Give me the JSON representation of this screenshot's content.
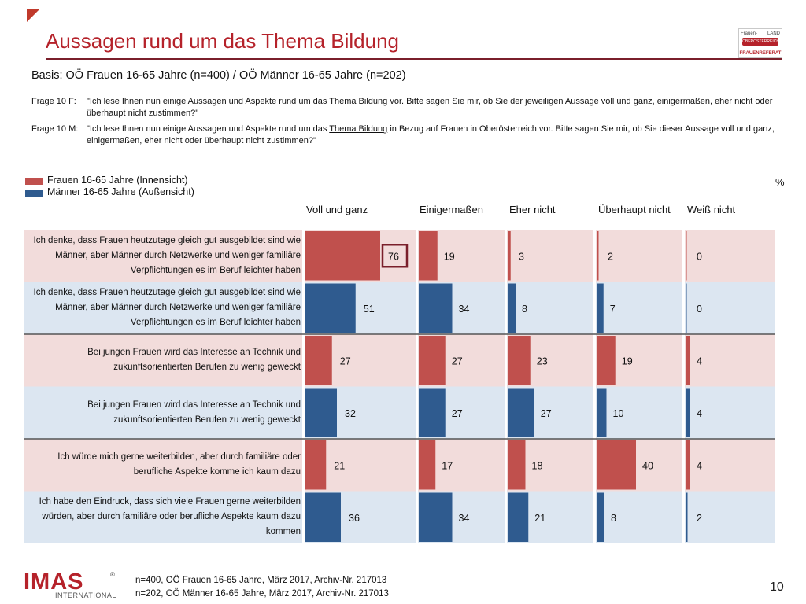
{
  "header": {
    "title": "Aussagen rund um das Thema Bildung",
    "basis": "Basis:  OÖ Frauen 16-65 Jahre (n=400) / OÖ Männer 16-65 Jahre (n=202)"
  },
  "logo": {
    "top_left": "Frauen-",
    "top_right": "LAND",
    "middle": "OBERÖSTERREICH",
    "bottom": "FRAUENREFERAT"
  },
  "questions": [
    {
      "label": "Frage 10 F:",
      "before": "\"Ich lese Ihnen nun einige Aussagen und Aspekte rund um das ",
      "underlined": "Thema Bildung",
      "after": " vor. Bitte sagen Sie mir, ob Sie der jeweiligen Aussage voll und ganz, einigermaßen, eher nicht oder überhaupt nicht zustimmen?\""
    },
    {
      "label": "Frage 10 M:",
      "before": "\"Ich lese Ihnen nun einige Aussagen und Aspekte rund um das ",
      "underlined": "Thema Bildung",
      "after": " in Bezug auf Frauen in Oberösterreich vor. Bitte sagen Sie mir, ob Sie dieser Aussage voll und ganz, einigermaßen, eher nicht oder überhaupt nicht zustimmen?\""
    }
  ],
  "unit": "%",
  "colors": {
    "frauen": "#c0504d",
    "maenner": "#2f5b8f",
    "frauen_bg": "#f2dcdb",
    "maenner_bg": "#dce6f1",
    "title": "#b5222a",
    "highlight_box": "#7a1f2b"
  },
  "chart_data": {
    "type": "bar",
    "orientation": "horizontal",
    "categories": [
      "Voll und ganz",
      "Einigermaßen",
      "Eher nicht",
      "Überhaupt nicht",
      "Weiß nicht"
    ],
    "legend": [
      "Frauen  16-65  Jahre  (Innensicht)",
      "Männer  16-65  Jahre  (Außensicht)"
    ],
    "xlim": [
      0,
      100
    ],
    "rows": [
      {
        "label": "Ich denke, dass Frauen heutzutage gleich gut ausgebildet sind wie Männer, aber Männer durch Netzwerke und weniger familiäre Verpflichtungen es im Beruf leichter haben",
        "group": "frauen",
        "values": [
          76,
          19,
          3,
          2,
          0
        ],
        "highlight": 0
      },
      {
        "label": "Ich denke, dass Frauen heutzutage gleich gut ausgebildet sind wie Männer, aber Männer durch Netzwerke und weniger familiäre Verpflichtungen es im Beruf leichter haben",
        "group": "maenner",
        "values": [
          51,
          34,
          8,
          7,
          0
        ]
      },
      {
        "label": "Bei jungen Frauen wird das Interesse an Technik und zukunftsorientierten Berufen zu wenig geweckt",
        "group": "frauen",
        "values": [
          27,
          27,
          23,
          19,
          4
        ]
      },
      {
        "label": "Bei jungen Frauen wird das Interesse an Technik und zukunftsorientierten Berufen zu wenig geweckt",
        "group": "maenner",
        "values": [
          32,
          27,
          27,
          10,
          4
        ]
      },
      {
        "label": "Ich würde mich gerne weiterbilden, aber durch familiäre oder berufliche Aspekte komme ich kaum dazu",
        "group": "frauen",
        "values": [
          21,
          17,
          18,
          40,
          4
        ]
      },
      {
        "label": "Ich habe den Eindruck, dass sich viele Frauen gerne weiterbilden würden, aber durch familiäre oder berufliche Aspekte kaum dazu kommen",
        "group": "maenner",
        "values": [
          36,
          34,
          21,
          8,
          2
        ]
      }
    ]
  },
  "footer": {
    "line1": "n=400, OÖ Frauen 16-65 Jahre, März 2017, Archiv-Nr. 217013",
    "line2": "n=202, OÖ Männer 16-65 Jahre, März 2017, Archiv-Nr. 217013",
    "page_number": "10",
    "brand": "IMAS",
    "brand_sub": "INTERNATIONAL",
    "brand_mark": "®"
  }
}
